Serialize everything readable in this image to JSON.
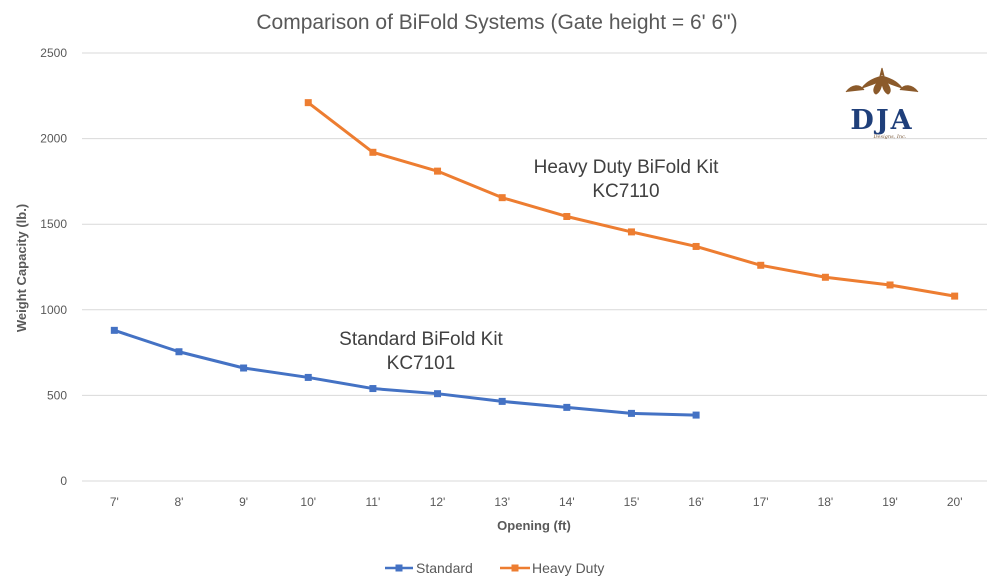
{
  "chart_data": {
    "type": "line",
    "title": "Comparison of BiFold Systems (Gate height = 6' 6\")",
    "xlabel": "Opening (ft)",
    "ylabel": "Weight Capacity (lb.)",
    "categories": [
      "7'",
      "8'",
      "9'",
      "10'",
      "11'",
      "12'",
      "13'",
      "14'",
      "15'",
      "16'",
      "17'",
      "18'",
      "19'",
      "20'"
    ],
    "ylim": [
      0,
      2500
    ],
    "yticks": [
      0,
      500,
      1000,
      1500,
      2000,
      2500
    ],
    "grid": "horizontal",
    "legend_position": "bottom",
    "series": [
      {
        "name": "Standard",
        "color": "#4472c4",
        "values": [
          880,
          755,
          660,
          605,
          540,
          510,
          465,
          430,
          395,
          385,
          null,
          null,
          null,
          null
        ]
      },
      {
        "name": "Heavy Duty",
        "color": "#ed7d31",
        "values": [
          null,
          null,
          null,
          2210,
          1920,
          1810,
          1655,
          1545,
          1455,
          1370,
          1260,
          1190,
          1145,
          1080
        ]
      }
    ],
    "annotations": [
      {
        "lines": [
          "Heavy Duty BiFold Kit",
          "KC7110"
        ]
      },
      {
        "lines": [
          "Standard BiFold Kit",
          "KC7101"
        ]
      }
    ]
  },
  "logo": {
    "text": "DJA",
    "subtext": "Designs, Inc."
  }
}
